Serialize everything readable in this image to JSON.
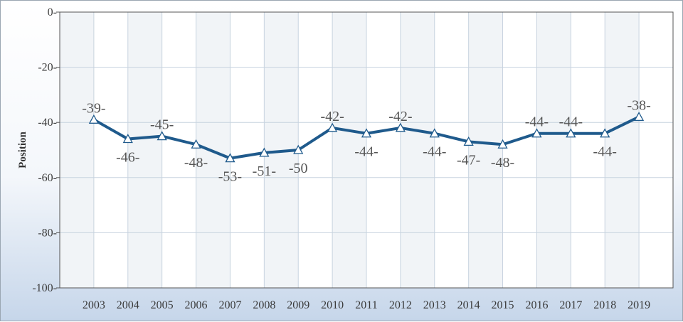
{
  "chart_data": {
    "type": "line",
    "title": "",
    "xlabel": "",
    "ylabel": "Position",
    "ylim": [
      -100,
      0
    ],
    "yticks": [
      0,
      -20,
      -40,
      -60,
      -80,
      -100
    ],
    "grid": true,
    "legend": "none",
    "categories": [
      "2003",
      "2004",
      "2005",
      "2006",
      "2007",
      "2008",
      "2009",
      "2010",
      "2011",
      "2012",
      "2013",
      "2014",
      "2015",
      "2016",
      "2017",
      "2018",
      "2019"
    ],
    "series": [
      {
        "values": [
          -39,
          -46,
          -45,
          -48,
          -53,
          -51,
          -50,
          -42,
          -44,
          -42,
          -44,
          -47,
          -48,
          -44,
          -44,
          -44,
          -38
        ],
        "labels": [
          "-39-",
          "-46-",
          "-45-",
          "-48-",
          "-53-",
          "-51-",
          "-50",
          "-42-",
          "-44-",
          "-42-",
          "-44-",
          "-47-",
          "-48-",
          "-44-",
          "-44-",
          "-44-",
          "-38-"
        ],
        "color": "#1f5a8c",
        "marker": "triangle"
      }
    ]
  },
  "colors": {
    "band_dark": "#f1f4f7",
    "band_light": "#ffffff",
    "grid": "#c7d3df",
    "axis": "#555555",
    "marker_fill": "#ffffff"
  }
}
